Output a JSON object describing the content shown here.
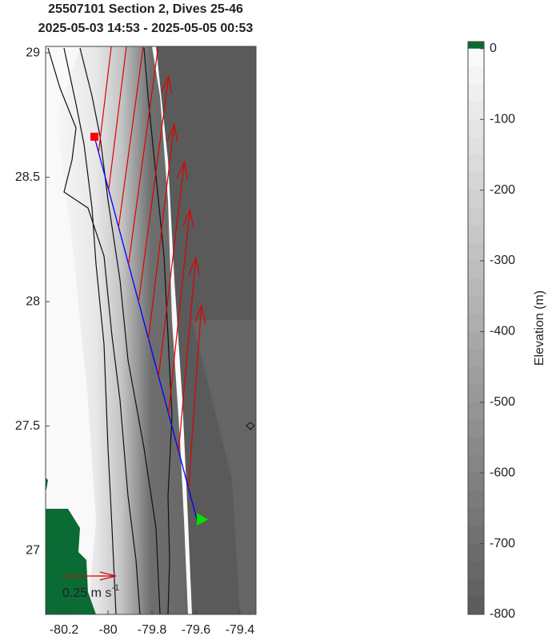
{
  "chart_data": {
    "type": "map",
    "title": "25507101 Section 2, Dives 25-46",
    "subtitle": "2025-05-03 14:53 - 2025-05-05 00:53",
    "xlim": [
      -80.284,
      -79.327
    ],
    "ylim": [
      26.743,
      29.026
    ],
    "xticks": [
      -80.2,
      -80,
      -79.8,
      -79.6,
      -79.4
    ],
    "yticks": [
      27,
      27.5,
      28,
      28.5,
      29
    ],
    "track": {
      "start": [
        -80.062,
        28.663
      ],
      "end": [
        -79.596,
        27.125
      ],
      "color": "#0000ff",
      "start_color": "#ff0000",
      "end_color": "#00e000"
    },
    "currents": {
      "color": "#e00000",
      "lon": [
        -80.043,
        -79.997,
        -79.952,
        -79.907,
        -79.861,
        -79.816,
        -79.77,
        -79.725,
        -79.679,
        -79.634
      ],
      "lat": [
        28.6,
        28.45,
        28.3,
        28.15,
        28.0,
        27.85,
        27.7,
        27.55,
        27.4,
        27.25
      ],
      "u": [
        0.12,
        0.13,
        0.15,
        0.15,
        0.14,
        0.12,
        0.12,
        0.1,
        0.08,
        0.06
      ],
      "v": [
        1.0,
        1.05,
        1.1,
        1.1,
        1.05,
        1.0,
        1.0,
        0.95,
        0.9,
        0.85
      ]
    },
    "scale_value": 0.25,
    "scale_label": "0.25 m s",
    "scale_label_exponent": "-1",
    "colorbar": {
      "label": "Elevation (m)",
      "clim": [
        -800,
        10
      ],
      "ticks": [
        0,
        -100,
        -200,
        -300,
        -400,
        -500,
        -600,
        -700,
        -800
      ],
      "land_color": "#0a6b35"
    }
  }
}
